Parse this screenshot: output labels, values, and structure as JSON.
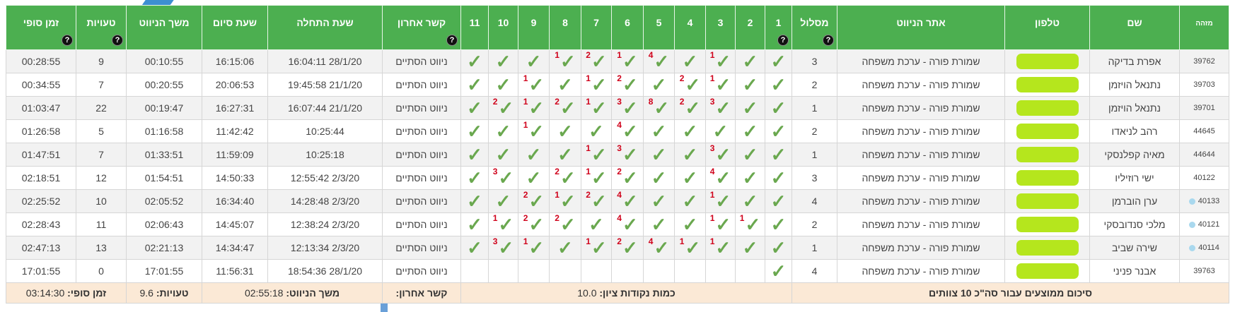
{
  "colors": {
    "header": "#4caf50",
    "check": "#6aa84f",
    "error": "#d0021b",
    "footer": "#fbe9d6",
    "phone_blur": "#b5e61d"
  },
  "headers": {
    "id": "מזהה",
    "name": "שם",
    "phone": "טלפון",
    "site": "אתר הניווט",
    "route": "מסלול",
    "checkpoints": [
      "1",
      "2",
      "3",
      "4",
      "5",
      "6",
      "7",
      "8",
      "9",
      "10",
      "11"
    ],
    "last_contact": "קשר אחרון",
    "start": "שעת התחלה",
    "end": "שעת סיום",
    "duration": "משך הניווט",
    "errors": "טעויות",
    "final": "זמן סופי",
    "help_icon": "?"
  },
  "rows": [
    {
      "id": "39762",
      "dot": false,
      "name": "אפרת בדיקה",
      "site": "שמורת פורה - ערכת משפחה",
      "route": "3",
      "checks": 11,
      "errs": {
        "3": "1",
        "5": "4",
        "6": "1",
        "7": "2",
        "8": "1"
      },
      "last_contact": "ניווט הסתיים",
      "start": "28/1/20 16:04:11",
      "end": "16:15:06",
      "duration": "00:10:55",
      "errors": "9",
      "final": "00:28:55"
    },
    {
      "id": "39703",
      "dot": false,
      "name": "נתנאל הויזמן",
      "site": "שמורת פורה - ערכת משפחה",
      "route": "2",
      "checks": 11,
      "errs": {
        "3": "1",
        "4": "2",
        "6": "2",
        "7": "1",
        "9": "1"
      },
      "last_contact": "ניווט הסתיים",
      "start": "21/1/20 19:45:58",
      "end": "20:06:53",
      "duration": "00:20:55",
      "errors": "7",
      "final": "00:34:55"
    },
    {
      "id": "39701",
      "dot": false,
      "name": "נתנאל הויזמן",
      "site": "שמורת פורה - ערכת משפחה",
      "route": "1",
      "checks": 11,
      "errs": {
        "3": "3",
        "4": "2",
        "5": "8",
        "6": "3",
        "7": "1",
        "8": "2",
        "9": "1",
        "10": "2"
      },
      "last_contact": "ניווט הסתיים",
      "start": "21/1/20 16:07:44",
      "end": "16:27:31",
      "duration": "00:19:47",
      "errors": "22",
      "final": "01:03:47"
    },
    {
      "id": "44645",
      "dot": false,
      "name": "רהב לניאדו",
      "site": "שמורת פורה - ערכת משפחה",
      "route": "2",
      "checks": 11,
      "errs": {
        "6": "4",
        "9": "1"
      },
      "last_contact": "ניווט הסתיים",
      "start": "10:25:44",
      "end": "11:42:42",
      "duration": "01:16:58",
      "errors": "5",
      "final": "01:26:58"
    },
    {
      "id": "44644",
      "dot": false,
      "name": "מאיה קפלנסקי",
      "site": "שמורת פורה - ערכת משפחה",
      "route": "1",
      "checks": 11,
      "errs": {
        "3": "3",
        "6": "3",
        "7": "1"
      },
      "last_contact": "ניווט הסתיים",
      "start": "10:25:18",
      "end": "11:59:09",
      "duration": "01:33:51",
      "errors": "7",
      "final": "01:47:51"
    },
    {
      "id": "40122",
      "dot": false,
      "name": "ישי רוזיליו",
      "site": "שמורת פורה - ערכת משפחה",
      "route": "3",
      "checks": 11,
      "errs": {
        "3": "4",
        "6": "2",
        "7": "1",
        "8": "2",
        "10": "3"
      },
      "last_contact": "ניווט הסתיים",
      "start": "2/3/20 12:55:42",
      "end": "14:50:33",
      "duration": "01:54:51",
      "errors": "12",
      "final": "02:18:51"
    },
    {
      "id": "40133",
      "dot": true,
      "name": "ערן הוברמן",
      "site": "שמורת פורה - ערכת משפחה",
      "route": "4",
      "checks": 11,
      "errs": {
        "3": "1",
        "6": "4",
        "7": "2",
        "8": "1",
        "9": "2"
      },
      "last_contact": "ניווט הסתיים",
      "start": "2/3/20 14:28:48",
      "end": "16:34:40",
      "duration": "02:05:52",
      "errors": "10",
      "final": "02:25:52"
    },
    {
      "id": "40121",
      "dot": true,
      "name": "מלכי סנדובסקי",
      "site": "שמורת פורה - ערכת משפחה",
      "route": "2",
      "checks": 11,
      "errs": {
        "2": "1",
        "3": "1",
        "6": "4",
        "8": "2",
        "9": "2",
        "10": "1"
      },
      "last_contact": "ניווט הסתיים",
      "start": "2/3/20 12:38:24",
      "end": "14:45:07",
      "duration": "02:06:43",
      "errors": "11",
      "final": "02:28:43"
    },
    {
      "id": "40114",
      "dot": true,
      "name": "שירה שביב",
      "site": "שמורת פורה - ערכת משפחה",
      "route": "1",
      "checks": 11,
      "errs": {
        "3": "1",
        "4": "1",
        "5": "4",
        "6": "2",
        "7": "1",
        "9": "1",
        "10": "3"
      },
      "last_contact": "ניווט הסתיים",
      "start": "2/3/20 12:13:34",
      "end": "14:34:47",
      "duration": "02:21:13",
      "errors": "13",
      "final": "02:47:13"
    },
    {
      "id": "39763",
      "dot": false,
      "name": "אבנר פניני",
      "site": "שמורת פורה - ערכת משפחה",
      "route": "4",
      "checks": 1,
      "errs": {},
      "last_contact": "ניווט הסתיים",
      "start": "28/1/20 18:54:36",
      "end": "11:56:31",
      "duration": "17:01:55",
      "errors": "0",
      "final": "17:01:55"
    }
  ],
  "footer": {
    "summary": "סיכום ממוצעים עבור סה\"כ 10 צוותים",
    "checkpoints_label": "כמות נקודות ציון:",
    "checkpoints_value": "10.0",
    "last_contact_label": "קשר אחרון:",
    "duration_label": "משך הניווט:",
    "duration_value": "02:55:18",
    "errors_label": "טעויות:",
    "errors_value": "9.6",
    "final_label": "זמן סופי:",
    "final_value": "03:14:30"
  }
}
